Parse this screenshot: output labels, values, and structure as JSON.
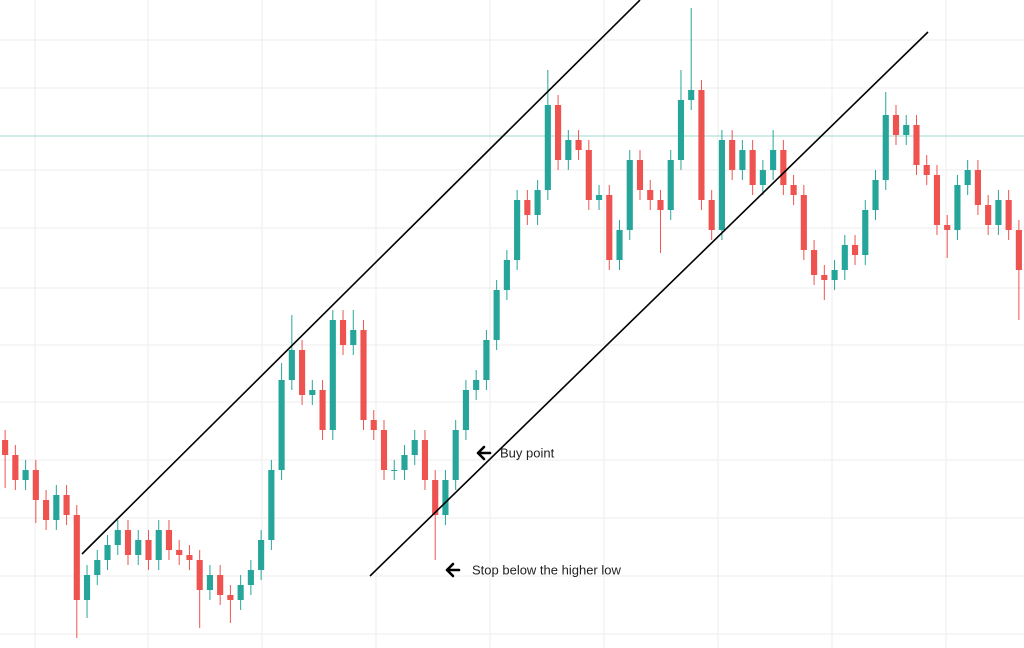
{
  "chart_data": {
    "type": "candlestick",
    "up_color": "#26a69a",
    "down_color": "#ef5350",
    "ylim": [
      0,
      648
    ],
    "open": [
      208,
      193,
      168,
      178,
      148,
      128,
      153,
      133,
      48,
      73,
      88,
      103,
      118,
      93,
      108,
      88,
      118,
      98,
      93,
      88,
      58,
      73,
      53,
      48,
      63,
      78,
      108,
      178,
      268,
      298,
      253,
      258,
      218,
      328,
      303,
      318,
      228,
      218,
      178,
      178,
      193,
      208,
      168,
      133,
      168,
      218,
      258,
      268,
      308,
      358,
      388,
      448,
      433,
      458,
      543,
      488,
      508,
      498,
      448,
      453,
      388,
      418,
      488,
      458,
      448,
      438,
      488,
      548,
      558,
      448,
      418,
      508,
      478,
      498,
      463,
      478,
      498,
      463,
      453,
      398,
      373,
      368,
      378,
      403,
      393,
      438,
      468,
      533,
      513,
      523,
      483,
      473,
      423,
      418,
      463,
      478,
      443,
      423,
      448,
      418
    ],
    "high": [
      218,
      203,
      188,
      188,
      158,
      163,
      163,
      143,
      83,
      98,
      113,
      128,
      128,
      118,
      118,
      128,
      128,
      108,
      103,
      98,
      83,
      83,
      63,
      73,
      88,
      118,
      188,
      285,
      333,
      308,
      268,
      268,
      338,
      338,
      338,
      328,
      238,
      228,
      188,
      203,
      218,
      218,
      178,
      178,
      228,
      268,
      278,
      318,
      368,
      398,
      458,
      458,
      468,
      578,
      553,
      518,
      518,
      508,
      463,
      463,
      428,
      498,
      498,
      468,
      458,
      498,
      578,
      640,
      568,
      458,
      518,
      518,
      508,
      508,
      488,
      518,
      508,
      473,
      463,
      408,
      383,
      388,
      413,
      413,
      448,
      478,
      556,
      543,
      533,
      533,
      493,
      483,
      433,
      473,
      488,
      488,
      453,
      458,
      458,
      428
    ],
    "low": [
      160,
      158,
      158,
      125,
      118,
      118,
      123,
      10,
      30,
      63,
      78,
      93,
      83,
      83,
      78,
      78,
      88,
      83,
      78,
      20,
      48,
      43,
      25,
      38,
      53,
      68,
      98,
      168,
      258,
      243,
      243,
      208,
      208,
      293,
      293,
      218,
      208,
      168,
      168,
      168,
      183,
      158,
      88,
      123,
      158,
      208,
      248,
      258,
      298,
      348,
      378,
      423,
      423,
      448,
      478,
      478,
      488,
      438,
      438,
      378,
      378,
      408,
      448,
      438,
      395,
      428,
      478,
      538,
      438,
      408,
      408,
      468,
      468,
      453,
      453,
      468,
      453,
      443,
      388,
      363,
      348,
      358,
      368,
      383,
      383,
      428,
      458,
      503,
      503,
      473,
      463,
      413,
      390,
      408,
      453,
      433,
      413,
      413,
      408,
      328
    ],
    "close": [
      193,
      168,
      178,
      148,
      128,
      153,
      133,
      48,
      73,
      88,
      103,
      118,
      93,
      108,
      88,
      118,
      98,
      93,
      88,
      58,
      73,
      53,
      48,
      63,
      78,
      108,
      178,
      268,
      298,
      253,
      258,
      218,
      328,
      303,
      318,
      228,
      218,
      178,
      178,
      193,
      208,
      168,
      133,
      168,
      218,
      258,
      268,
      308,
      358,
      388,
      448,
      433,
      458,
      543,
      488,
      508,
      498,
      448,
      453,
      388,
      418,
      488,
      458,
      448,
      438,
      488,
      548,
      558,
      448,
      418,
      508,
      478,
      498,
      463,
      478,
      498,
      463,
      453,
      398,
      373,
      368,
      378,
      403,
      393,
      438,
      468,
      533,
      513,
      523,
      483,
      473,
      423,
      418,
      463,
      478,
      443,
      423,
      448,
      418,
      378
    ],
    "annotations": [
      "Buy point",
      "Stop below the higher low"
    ]
  }
}
